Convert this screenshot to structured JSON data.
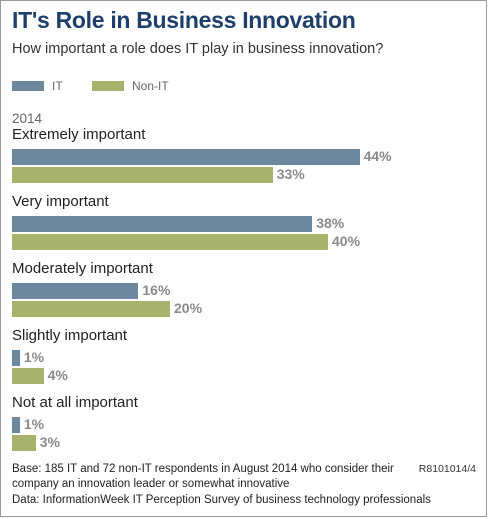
{
  "title": "IT's Role in Business Innovation",
  "subtitle": "How important a role does IT play in business innovation?",
  "legend": [
    {
      "label": "IT",
      "color": "#6b889e"
    },
    {
      "label": "Non-IT",
      "color": "#a7b36d"
    }
  ],
  "year_label": "2014",
  "chart_data": {
    "type": "bar",
    "orientation": "horizontal",
    "categories": [
      "Extremely important",
      "Very important",
      "Moderately important",
      "Slightly important",
      "Not at all important"
    ],
    "series": [
      {
        "name": "IT",
        "values": [
          44,
          38,
          16,
          1,
          1
        ],
        "labels": [
          "44%",
          "38%",
          "16%",
          "1%",
          "1%"
        ],
        "color": "#6b889e"
      },
      {
        "name": "Non-IT",
        "values": [
          33,
          40,
          20,
          4,
          3
        ],
        "labels": [
          "33%",
          "40%",
          "20%",
          "4%",
          "3%"
        ],
        "color": "#a7b36d"
      }
    ],
    "unit": "%",
    "xlim": [
      0,
      50
    ]
  },
  "footer": {
    "line1": "Base: 185 IT and 72 non-IT respondents in August 2014 who consider their",
    "line2": "company an innovation leader or somewhat innovative",
    "line3": "Data: InformationWeek IT Perception Survey of business technology professionals",
    "code": "R8101014/4"
  }
}
